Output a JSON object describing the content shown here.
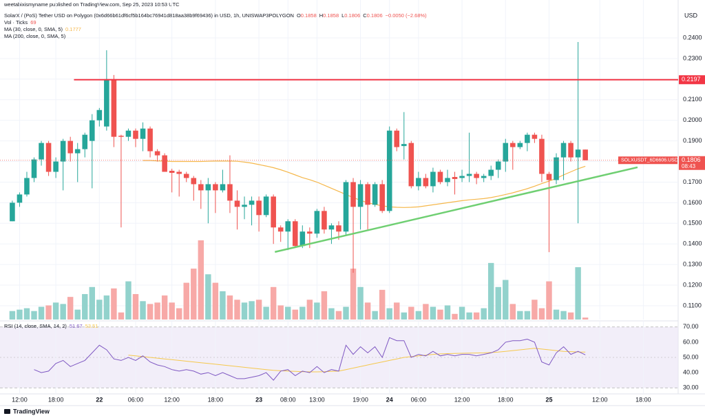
{
  "header": {
    "published": "weetabixismyname published on TradingView.com, Sep 25, 2023 10:53 UTC"
  },
  "footer": {
    "brand": "TradingView"
  },
  "chart_data": [
    {
      "type": "candlestick",
      "title": "SolarX / (PoS) Tether USD on Polygon (0x6d66b61df6cf5b164bc76941d818aa38b9f69436) in USD, 1h, UNISWAP3POLYGON",
      "ohlc_labels": [
        "O",
        "H",
        "L",
        "C"
      ],
      "change": "−0.0050 (−2.68%)",
      "y_axis_label": "USD",
      "symbol_tag": "SOLXUSDT_6D6606.USD",
      "countdown": "08:43",
      "color_up": "#26a69a",
      "color_down": "#ef5350",
      "volume_color_up": "#92d2cc",
      "volume_color_down": "#f7a9a7",
      "xlim": [
        -1.7,
        91.8
      ],
      "ylim": [
        0.1033,
        0.2584
      ],
      "yticks": [
        {
          "value": 0.11,
          "label": "0.1100"
        },
        {
          "value": 0.12,
          "label": "0.1200"
        },
        {
          "value": 0.13,
          "label": "0.1300"
        },
        {
          "value": 0.14,
          "label": "0.1400"
        },
        {
          "value": 0.15,
          "label": "0.1500"
        },
        {
          "value": 0.16,
          "label": "0.1600"
        },
        {
          "value": 0.17,
          "label": "0.1700"
        },
        {
          "value": 0.18,
          "label": "0.1800"
        },
        {
          "value": 0.19,
          "label": "0.1900"
        },
        {
          "value": 0.2,
          "label": "0.2000"
        },
        {
          "value": 0.21,
          "label": "0.2100"
        },
        {
          "value": 0.22,
          "label": "0.2200"
        },
        {
          "value": 0.23,
          "label": "0.2300"
        },
        {
          "value": 0.24,
          "label": "0.2400"
        }
      ],
      "xticks": [
        {
          "value": 1,
          "label": "12:00"
        },
        {
          "value": 6,
          "label": "18:00"
        },
        {
          "value": 12,
          "label": "22"
        },
        {
          "value": 17,
          "label": "06:00"
        },
        {
          "value": 22,
          "label": "12:00"
        },
        {
          "value": 28,
          "label": "18:00"
        },
        {
          "value": 34,
          "label": "23"
        },
        {
          "value": 38,
          "label": "08:00"
        },
        {
          "value": 42,
          "label": "13:00"
        },
        {
          "value": 48,
          "label": "19:00"
        },
        {
          "value": 52,
          "label": "24"
        },
        {
          "value": 56,
          "label": "06:00"
        },
        {
          "value": 62,
          "label": "12:00"
        },
        {
          "value": 68,
          "label": "18:00"
        },
        {
          "value": 74,
          "label": "25"
        },
        {
          "value": 81,
          "label": "12:00"
        },
        {
          "value": 87,
          "label": "18:00"
        }
      ],
      "grid": true,
      "candles": [
        [
          0.151,
          0.161,
          0.151,
          0.16
        ],
        [
          0.16,
          0.165,
          0.158,
          0.164
        ],
        [
          0.164,
          0.175,
          0.163,
          0.172
        ],
        [
          0.172,
          0.182,
          0.17,
          0.181
        ],
        [
          0.181,
          0.19,
          0.178,
          0.189
        ],
        [
          0.189,
          0.19,
          0.173,
          0.175
        ],
        [
          0.175,
          0.182,
          0.172,
          0.18
        ],
        [
          0.18,
          0.191,
          0.166,
          0.19
        ],
        [
          0.19,
          0.192,
          0.18,
          0.184
        ],
        [
          0.184,
          0.189,
          0.17,
          0.186
        ],
        [
          0.186,
          0.194,
          0.182,
          0.193
        ],
        [
          0.19,
          0.203,
          0.167,
          0.2
        ],
        [
          0.2,
          0.206,
          0.197,
          0.205
        ],
        [
          0.197,
          0.234,
          0.195,
          0.22
        ],
        [
          0.22,
          0.222,
          0.187,
          0.192
        ],
        [
          0.1925,
          0.193,
          0.148,
          0.192
        ],
        [
          0.192,
          0.196,
          0.19,
          0.195
        ],
        [
          0.195,
          0.196,
          0.187,
          0.191
        ],
        [
          0.191,
          0.199,
          0.185,
          0.196
        ],
        [
          0.196,
          0.197,
          0.182,
          0.185
        ],
        [
          0.185,
          0.186,
          0.18,
          0.183
        ],
        [
          0.183,
          0.184,
          0.175,
          0.175
        ],
        [
          0.1755,
          0.1765,
          0.165,
          0.1745
        ],
        [
          0.175,
          0.176,
          0.163,
          0.174
        ],
        [
          0.174,
          0.175,
          0.17,
          0.172
        ],
        [
          0.172,
          0.173,
          0.161,
          0.169
        ],
        [
          0.169,
          0.171,
          0.157,
          0.166
        ],
        [
          0.166,
          0.172,
          0.15,
          0.169
        ],
        [
          0.169,
          0.17,
          0.155,
          0.166
        ],
        [
          0.166,
          0.176,
          0.165,
          0.169
        ],
        [
          0.169,
          0.183,
          0.155,
          0.161
        ],
        [
          0.161,
          0.166,
          0.147,
          0.158
        ],
        [
          0.158,
          0.163,
          0.152,
          0.159
        ],
        [
          0.159,
          0.163,
          0.149,
          0.161
        ],
        [
          0.161,
          0.163,
          0.146,
          0.154
        ],
        [
          0.154,
          0.164,
          0.153,
          0.163
        ],
        [
          0.163,
          0.164,
          0.14,
          0.148
        ],
        [
          0.148,
          0.149,
          0.141,
          0.146
        ],
        [
          0.146,
          0.152,
          0.137,
          0.151
        ],
        [
          0.151,
          0.152,
          0.138,
          0.139
        ],
        [
          0.139,
          0.149,
          0.138,
          0.146
        ],
        [
          0.146,
          0.148,
          0.138,
          0.145
        ],
        [
          0.145,
          0.157,
          0.143,
          0.156
        ],
        [
          0.156,
          0.158,
          0.145,
          0.147
        ],
        [
          0.147,
          0.15,
          0.14,
          0.149
        ],
        [
          0.149,
          0.151,
          0.142,
          0.146
        ],
        [
          0.146,
          0.171,
          0.144,
          0.17
        ],
        [
          0.17,
          0.172,
          0.126,
          0.158
        ],
        [
          0.158,
          0.171,
          0.147,
          0.169
        ],
        [
          0.169,
          0.17,
          0.147,
          0.159
        ],
        [
          0.159,
          0.17,
          0.158,
          0.169
        ],
        [
          0.169,
          0.171,
          0.155,
          0.156
        ],
        [
          0.156,
          0.197,
          0.155,
          0.195
        ],
        [
          0.195,
          0.196,
          0.185,
          0.187
        ],
        [
          0.1875,
          0.204,
          0.181,
          0.1885
        ],
        [
          0.189,
          0.19,
          0.167,
          0.168
        ],
        [
          0.168,
          0.175,
          0.166,
          0.172
        ],
        [
          0.172,
          0.174,
          0.167,
          0.168
        ],
        [
          0.168,
          0.177,
          0.165,
          0.175
        ],
        [
          0.175,
          0.176,
          0.169,
          0.17
        ],
        [
          0.17,
          0.176,
          0.168,
          0.172
        ],
        [
          0.1725,
          0.175,
          0.164,
          0.1715
        ],
        [
          0.172,
          0.176,
          0.17,
          0.173
        ],
        [
          0.173,
          0.194,
          0.17,
          0.174
        ],
        [
          0.174,
          0.175,
          0.169,
          0.172
        ],
        [
          0.172,
          0.174,
          0.17,
          0.173
        ],
        [
          0.173,
          0.178,
          0.171,
          0.176
        ],
        [
          0.176,
          0.181,
          0.172,
          0.18
        ],
        [
          0.18,
          0.191,
          0.175,
          0.189
        ],
        [
          0.189,
          0.19,
          0.176,
          0.187
        ],
        [
          0.187,
          0.19,
          0.186,
          0.189
        ],
        [
          0.189,
          0.194,
          0.185,
          0.193
        ],
        [
          0.193,
          0.194,
          0.189,
          0.191
        ],
        [
          0.191,
          0.193,
          0.17,
          0.174
        ],
        [
          0.174,
          0.175,
          0.136,
          0.171
        ],
        [
          0.171,
          0.184,
          0.169,
          0.182
        ],
        [
          0.182,
          0.19,
          0.171,
          0.189
        ],
        [
          0.189,
          0.19,
          0.18,
          0.182
        ],
        [
          0.182,
          0.238,
          0.15,
          0.1858
        ],
        [
          0.1858,
          0.1858,
          0.1806,
          0.1806
        ]
      ],
      "volume": {
        "name": "Vol · Ticks",
        "values": [
          300,
          350,
          400,
          300,
          450,
          500,
          600,
          550,
          800,
          350,
          900,
          1150,
          700,
          850,
          1100,
          250,
          1350,
          900,
          650,
          550,
          600,
          850,
          600,
          400,
          1300,
          1800,
          2800,
          1600,
          1300,
          1000,
          850,
          700,
          600,
          650,
          700,
          450,
          1150,
          500,
          450,
          350,
          450,
          700,
          600,
          1000,
          400,
          300,
          450,
          1800,
          1150,
          600,
          300,
          1050,
          400,
          600,
          250,
          450,
          300,
          550,
          450,
          350,
          500,
          200,
          450,
          250,
          250,
          400,
          2000,
          1150,
          1400,
          550,
          300,
          300,
          700,
          400,
          1350,
          350,
          300,
          250,
          1850,
          69
        ]
      },
      "series": [
        {
          "name": "MA (30, close, 0, SMA, 5)",
          "color": "#f5b74a",
          "values": [
            null,
            null,
            null,
            null,
            null,
            null,
            null,
            null,
            null,
            null,
            null,
            null,
            null,
            null,
            null,
            null,
            null,
            null,
            0.1805,
            0.1805,
            0.1803,
            0.1802,
            0.18,
            0.18,
            0.18,
            0.18,
            0.18,
            0.1801,
            0.1802,
            0.1802,
            0.1802,
            0.1801,
            0.1797,
            0.1792,
            0.1785,
            0.1778,
            0.177,
            0.176,
            0.1748,
            0.1735,
            0.1722,
            0.1712,
            0.17,
            0.1685,
            0.167,
            0.1655,
            0.164,
            0.1625,
            0.1612,
            0.16,
            0.1592,
            0.1585,
            0.158,
            0.1578,
            0.1577,
            0.1578,
            0.158,
            0.1585,
            0.159,
            0.1595,
            0.16,
            0.1605,
            0.161,
            0.1614,
            0.1617,
            0.162,
            0.1625,
            0.1632,
            0.164,
            0.1648,
            0.1658,
            0.1668,
            0.168,
            0.1693,
            0.1705,
            0.1718,
            0.1735,
            0.175,
            0.1765,
            0.1777
          ]
        }
      ],
      "ma200_name": "MA (200, close, 0, SMA, 5)",
      "resistance": {
        "value": 0.2197,
        "x_start": 8.5,
        "color": "#f23645"
      },
      "trendline": {
        "x": [
          36.2,
          86.2
        ],
        "y": [
          0.1361,
          0.1772
        ],
        "color": "#6fcf72"
      }
    },
    {
      "type": "line",
      "title": "RSI (14, close, SMA, 14, 2)",
      "ylim": [
        26,
        74
      ],
      "yticks": [
        {
          "value": 30,
          "label": "30.00"
        },
        {
          "value": 40,
          "label": "40.00"
        },
        {
          "value": 50,
          "label": "50.00"
        },
        {
          "value": 60,
          "label": "60.00"
        },
        {
          "value": 70,
          "label": "70.00"
        }
      ],
      "band": [
        30,
        70
      ],
      "midline": 50,
      "band_color": "#ede7f6",
      "series": [
        {
          "color": "#7e57c2",
          "values": [
            null,
            null,
            null,
            42,
            40,
            41,
            46,
            48,
            44,
            46,
            48,
            53,
            58,
            55,
            49,
            48,
            50,
            48,
            51,
            47,
            45,
            44,
            42,
            41,
            42,
            41,
            39,
            40,
            38,
            40,
            38,
            36,
            36,
            37,
            38,
            40,
            35,
            41,
            42,
            38,
            41,
            40,
            44,
            40,
            42,
            41,
            58,
            52,
            57,
            53,
            57,
            50,
            63,
            61,
            61,
            50,
            52,
            51,
            54,
            51,
            52,
            51,
            52,
            52,
            51,
            52,
            53,
            55,
            60,
            61,
            61,
            62,
            60,
            47,
            45,
            53,
            57,
            52,
            54,
            51.67
          ]
        },
        {
          "color": "#f5c84c",
          "values": [
            null,
            null,
            null,
            null,
            null,
            null,
            null,
            null,
            null,
            null,
            null,
            null,
            null,
            null,
            null,
            null,
            51.5,
            51,
            50.5,
            50,
            49.5,
            49,
            48.5,
            48,
            47.5,
            47,
            46.5,
            46,
            45.5,
            45,
            44.5,
            44,
            43.5,
            43,
            42.5,
            42,
            41.5,
            41.2,
            41,
            40.8,
            40.6,
            40.5,
            40.5,
            40.6,
            40.8,
            41,
            42,
            43,
            44,
            45,
            46,
            47,
            48,
            49,
            50,
            50.5,
            51,
            51.5,
            52,
            52.3,
            52.5,
            52.6,
            52.7,
            52.8,
            52.9,
            53,
            53.2,
            53.5,
            54,
            54.5,
            55,
            55.5,
            56,
            55.5,
            55,
            54.5,
            54,
            53.8,
            53.6,
            53.51
          ]
        }
      ]
    }
  ]
}
